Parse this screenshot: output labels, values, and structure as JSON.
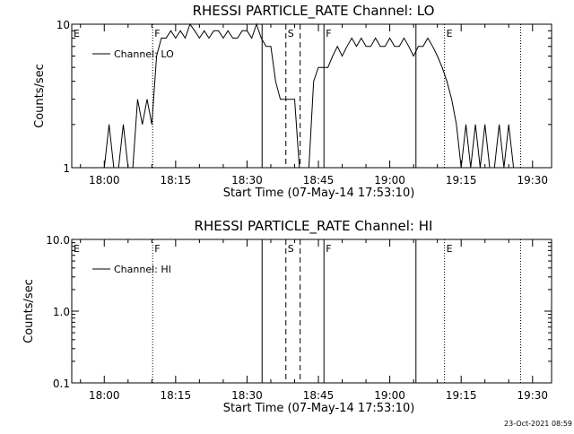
{
  "timestamp": "23-Oct-2021 08:59",
  "chart_data": [
    {
      "type": "line",
      "title": "RHESSI PARTICLE_RATE Channel: LO",
      "xlabel": "Start Time (07-May-14 17:53:10)",
      "ylabel": "Counts/sec",
      "y_scale": "log",
      "ylim": [
        1,
        10
      ],
      "y_ticks": [
        1,
        10
      ],
      "y_tick_labels": [
        "1",
        "10"
      ],
      "xlim": [
        "17:53:10",
        "19:34:00"
      ],
      "x_ticks": [
        "18:00",
        "18:15",
        "18:30",
        "18:45",
        "19:00",
        "19:15",
        "19:30"
      ],
      "legend": {
        "label": "Channel: LO",
        "position": "top-left"
      },
      "grid": false,
      "series": [
        {
          "name": "Channel: LO",
          "x": [
            "18:00",
            "18:01",
            "18:02",
            "18:03",
            "18:04",
            "18:05",
            "18:06",
            "18:07",
            "18:08",
            "18:09",
            "18:10",
            "18:11",
            "18:12",
            "18:13",
            "18:14",
            "18:15",
            "18:16",
            "18:17",
            "18:18",
            "18:19",
            "18:20",
            "18:21",
            "18:22",
            "18:23",
            "18:24",
            "18:25",
            "18:26",
            "18:27",
            "18:28",
            "18:29",
            "18:30",
            "18:31",
            "18:32",
            "18:33",
            "18:34",
            "18:35",
            "18:36",
            "18:37",
            "18:38",
            "18:39",
            "18:40",
            "18:41",
            "18:42",
            "18:43",
            "18:44",
            "18:45",
            "18:46",
            "18:47",
            "18:48",
            "18:49",
            "18:50",
            "18:51",
            "18:52",
            "18:53",
            "18:54",
            "18:55",
            "18:56",
            "18:57",
            "18:58",
            "18:59",
            "19:00",
            "19:01",
            "19:02",
            "19:03",
            "19:04",
            "19:05",
            "19:06",
            "19:07",
            "19:08",
            "19:09",
            "19:10",
            "19:11",
            "19:12",
            "19:13",
            "19:14",
            "19:15",
            "19:16",
            "19:17",
            "19:18",
            "19:19",
            "19:20",
            "19:21",
            "19:22",
            "19:23",
            "19:24",
            "19:25",
            "19:26"
          ],
          "values": [
            1,
            2,
            1,
            1,
            2,
            1,
            1,
            3,
            2,
            3,
            2,
            6,
            8,
            8,
            9,
            8,
            9,
            8,
            10,
            9,
            8,
            9,
            8,
            9,
            9,
            8,
            9,
            8,
            8,
            9,
            9,
            8,
            10,
            8,
            7,
            7,
            4,
            3,
            3,
            3,
            3,
            1,
            1,
            1,
            4,
            5,
            5,
            5,
            6,
            7,
            6,
            7,
            8,
            7,
            8,
            7,
            7,
            8,
            7,
            7,
            8,
            7,
            7,
            8,
            7,
            6,
            7,
            7,
            8,
            7,
            6,
            5,
            4,
            3,
            2,
            1,
            2,
            1,
            2,
            1,
            2,
            1,
            1,
            2,
            1,
            2,
            1
          ]
        }
      ],
      "markers": [
        {
          "label": "E",
          "time": "17:53:10",
          "style": "none"
        },
        {
          "label": "F",
          "time": "18:10:10",
          "style": "dotted"
        },
        {
          "label": "",
          "time": "18:33:10",
          "style": "solid"
        },
        {
          "label": "S",
          "time": "18:38:10",
          "style": "dashed"
        },
        {
          "label": "",
          "time": "18:41:10",
          "style": "dashed"
        },
        {
          "label": "F",
          "time": "18:46:10",
          "style": "solid"
        },
        {
          "label": "",
          "time": "19:05:30",
          "style": "solid"
        },
        {
          "label": "E",
          "time": "19:11:30",
          "style": "dotted"
        },
        {
          "label": "",
          "time": "19:27:30",
          "style": "dotted"
        }
      ]
    },
    {
      "type": "line",
      "title": "RHESSI PARTICLE_RATE Channel: HI",
      "xlabel": "Start Time (07-May-14 17:53:10)",
      "ylabel": "Counts/sec",
      "y_scale": "log",
      "ylim": [
        0.1,
        10.0
      ],
      "y_ticks": [
        0.1,
        1.0,
        10.0
      ],
      "y_tick_labels": [
        "0.1",
        "1.0",
        "10.0"
      ],
      "xlim": [
        "17:53:10",
        "19:34:00"
      ],
      "x_ticks": [
        "18:00",
        "18:15",
        "18:30",
        "18:45",
        "19:00",
        "19:15",
        "19:30"
      ],
      "legend": {
        "label": "Channel: HI",
        "position": "top-left"
      },
      "grid": false,
      "series": [
        {
          "name": "Channel: HI",
          "x": [],
          "values": []
        }
      ],
      "markers": [
        {
          "label": "E",
          "time": "17:53:10",
          "style": "none"
        },
        {
          "label": "F",
          "time": "18:10:10",
          "style": "dotted"
        },
        {
          "label": "",
          "time": "18:33:10",
          "style": "solid"
        },
        {
          "label": "S",
          "time": "18:38:10",
          "style": "dashed"
        },
        {
          "label": "",
          "time": "18:41:10",
          "style": "dashed"
        },
        {
          "label": "F",
          "time": "18:46:10",
          "style": "solid"
        },
        {
          "label": "",
          "time": "19:05:30",
          "style": "solid"
        },
        {
          "label": "E",
          "time": "19:11:30",
          "style": "dotted"
        },
        {
          "label": "",
          "time": "19:27:30",
          "style": "dotted"
        }
      ]
    }
  ]
}
